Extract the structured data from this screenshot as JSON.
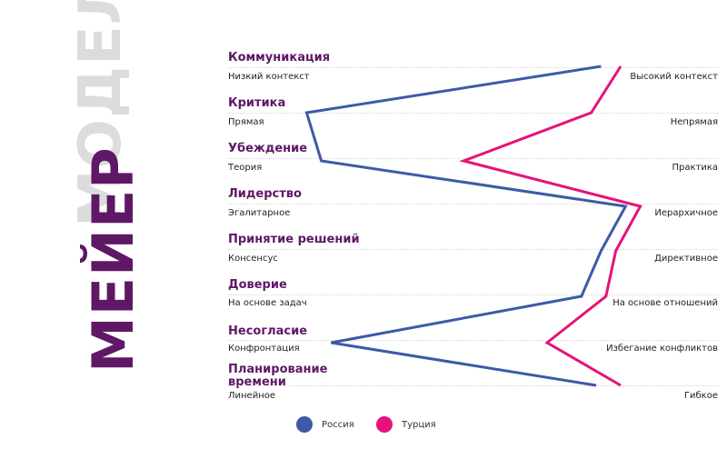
{
  "title": {
    "ghost": "МОДЕЛЬ",
    "main": "МЕЙЕР"
  },
  "chart_data": {
    "type": "line",
    "orientation": "vertical-profile",
    "categories": [
      {
        "name": "Коммуникация",
        "left": "Низкий контекст",
        "right": "Высокий контекст"
      },
      {
        "name": "Критика",
        "left": "Прямая",
        "right": "Непрямая"
      },
      {
        "name": "Убеждение",
        "left": "Теория",
        "right": "Практика"
      },
      {
        "name": "Лидерство",
        "left": "Эгалитарное",
        "right": "Иерархичное"
      },
      {
        "name": "Принятие решений",
        "left": "Консенсус",
        "right": "Директивное"
      },
      {
        "name": "Доверие",
        "left": "На основе задач",
        "right": "На основе отношений"
      },
      {
        "name": "Несогласие",
        "left": "Конфронтация",
        "right": "Избегание конфликтов"
      },
      {
        "name": "Планирование времени",
        "left": "Линейное",
        "right": "Гибкое"
      }
    ],
    "series": [
      {
        "name": "Россия",
        "color": "#3d5aa8",
        "values": [
          0.76,
          0.16,
          0.19,
          0.81,
          0.76,
          0.72,
          0.21,
          0.75
        ]
      },
      {
        "name": "Турция",
        "color": "#e5137a",
        "values": [
          0.8,
          0.74,
          0.48,
          0.84,
          0.79,
          0.77,
          0.65,
          0.8
        ]
      }
    ],
    "xlim": [
      0,
      1
    ]
  }
}
